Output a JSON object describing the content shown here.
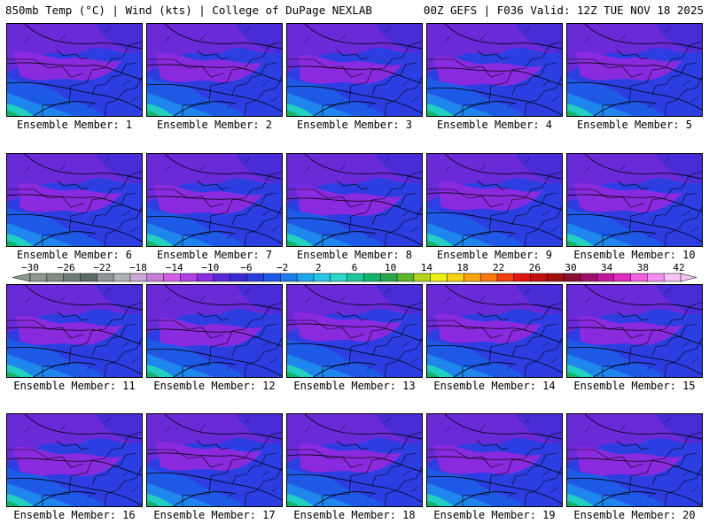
{
  "header": {
    "left": "850mb Temp (°C) | Wind (kts) | College of DuPage NEXLAB",
    "right": "00Z GEFS | F036 Valid: 12Z TUE NOV 18 2025"
  },
  "member_label_prefix": "Ensemble Member: ",
  "members": [
    "1",
    "2",
    "3",
    "4",
    "5",
    "6",
    "7",
    "8",
    "9",
    "10",
    "11",
    "12",
    "13",
    "14",
    "15",
    "16",
    "17",
    "18",
    "19",
    "20"
  ],
  "colorbar": {
    "tick_labels": [
      "−30",
      "−26",
      "−22",
      "−18",
      "−14",
      "−10",
      "−6",
      "−2",
      "2",
      "6",
      "10",
      "14",
      "18",
      "22",
      "26",
      "30",
      "34",
      "38",
      "42"
    ],
    "colors": [
      "#8c9a8e",
      "#7f8d84",
      "#6f7d77",
      "#5e6a67",
      "#8e9497",
      "#aeb2b6",
      "#c9a9d6",
      "#c77fd6",
      "#d45fe6",
      "#b040e0",
      "#8a2cdc",
      "#5a28d8",
      "#3a2ad4",
      "#2a3ee0",
      "#1f58e4",
      "#1e7cea",
      "#1ea6ee",
      "#28c6e6",
      "#2ad8cc",
      "#1ec79a",
      "#14b46a",
      "#28a84a",
      "#5cb82a",
      "#b4d21e",
      "#f0f014",
      "#f8d214",
      "#f8a40c",
      "#f87a0c",
      "#f0400c",
      "#e01414",
      "#c0100e",
      "#a0100e",
      "#8a0e2e",
      "#a0106a",
      "#c01898",
      "#e02cc4",
      "#f060e0",
      "#f48ef0",
      "#f8c4f6"
    ]
  },
  "field_colors": {
    "violet": "#8a2ade",
    "purple": "#6a2ad8",
    "indigo": "#4a2cd6",
    "blue": "#2c3ee2",
    "royal": "#1f5ae6",
    "sky": "#1e86ec",
    "cyan": "#22bce6",
    "teal": "#22cfc0",
    "green": "#14b46a"
  }
}
